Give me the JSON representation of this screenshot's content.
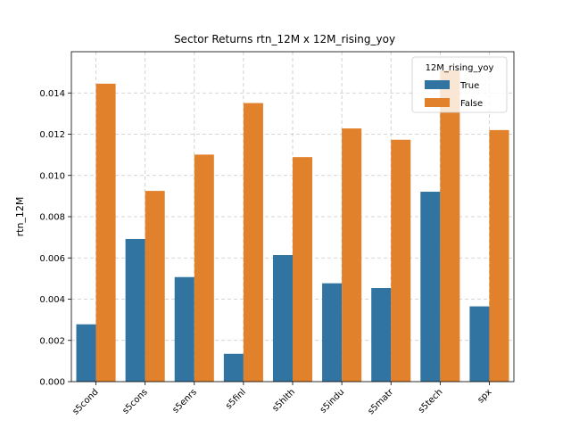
{
  "chart_data": {
    "type": "bar",
    "title": "Sector Returns rtn_12M x 12M_rising_yoy",
    "xlabel": "",
    "ylabel": "rtn_12M",
    "ylim": [
      0,
      0.016
    ],
    "yticks": [
      "0.000",
      "0.002",
      "0.004",
      "0.006",
      "0.008",
      "0.010",
      "0.012",
      "0.014"
    ],
    "categories": [
      "s5cond",
      "s5cons",
      "s5enrs",
      "s5finl",
      "s5hlth",
      "s5indu",
      "s5matr",
      "s5tech",
      "spx"
    ],
    "series": [
      {
        "name": "True",
        "color": "#3274a1",
        "values": [
          0.00278,
          0.00692,
          0.00507,
          0.00135,
          0.00614,
          0.00477,
          0.00454,
          0.00921,
          0.00365
        ]
      },
      {
        "name": "False",
        "color": "#e1812c",
        "values": [
          0.01445,
          0.00925,
          0.01101,
          0.01351,
          0.01089,
          0.01228,
          0.01173,
          0.0151,
          0.0122
        ]
      }
    ],
    "legend": {
      "title": "12M_rising_yoy",
      "position": "top-right"
    },
    "grid": true
  }
}
